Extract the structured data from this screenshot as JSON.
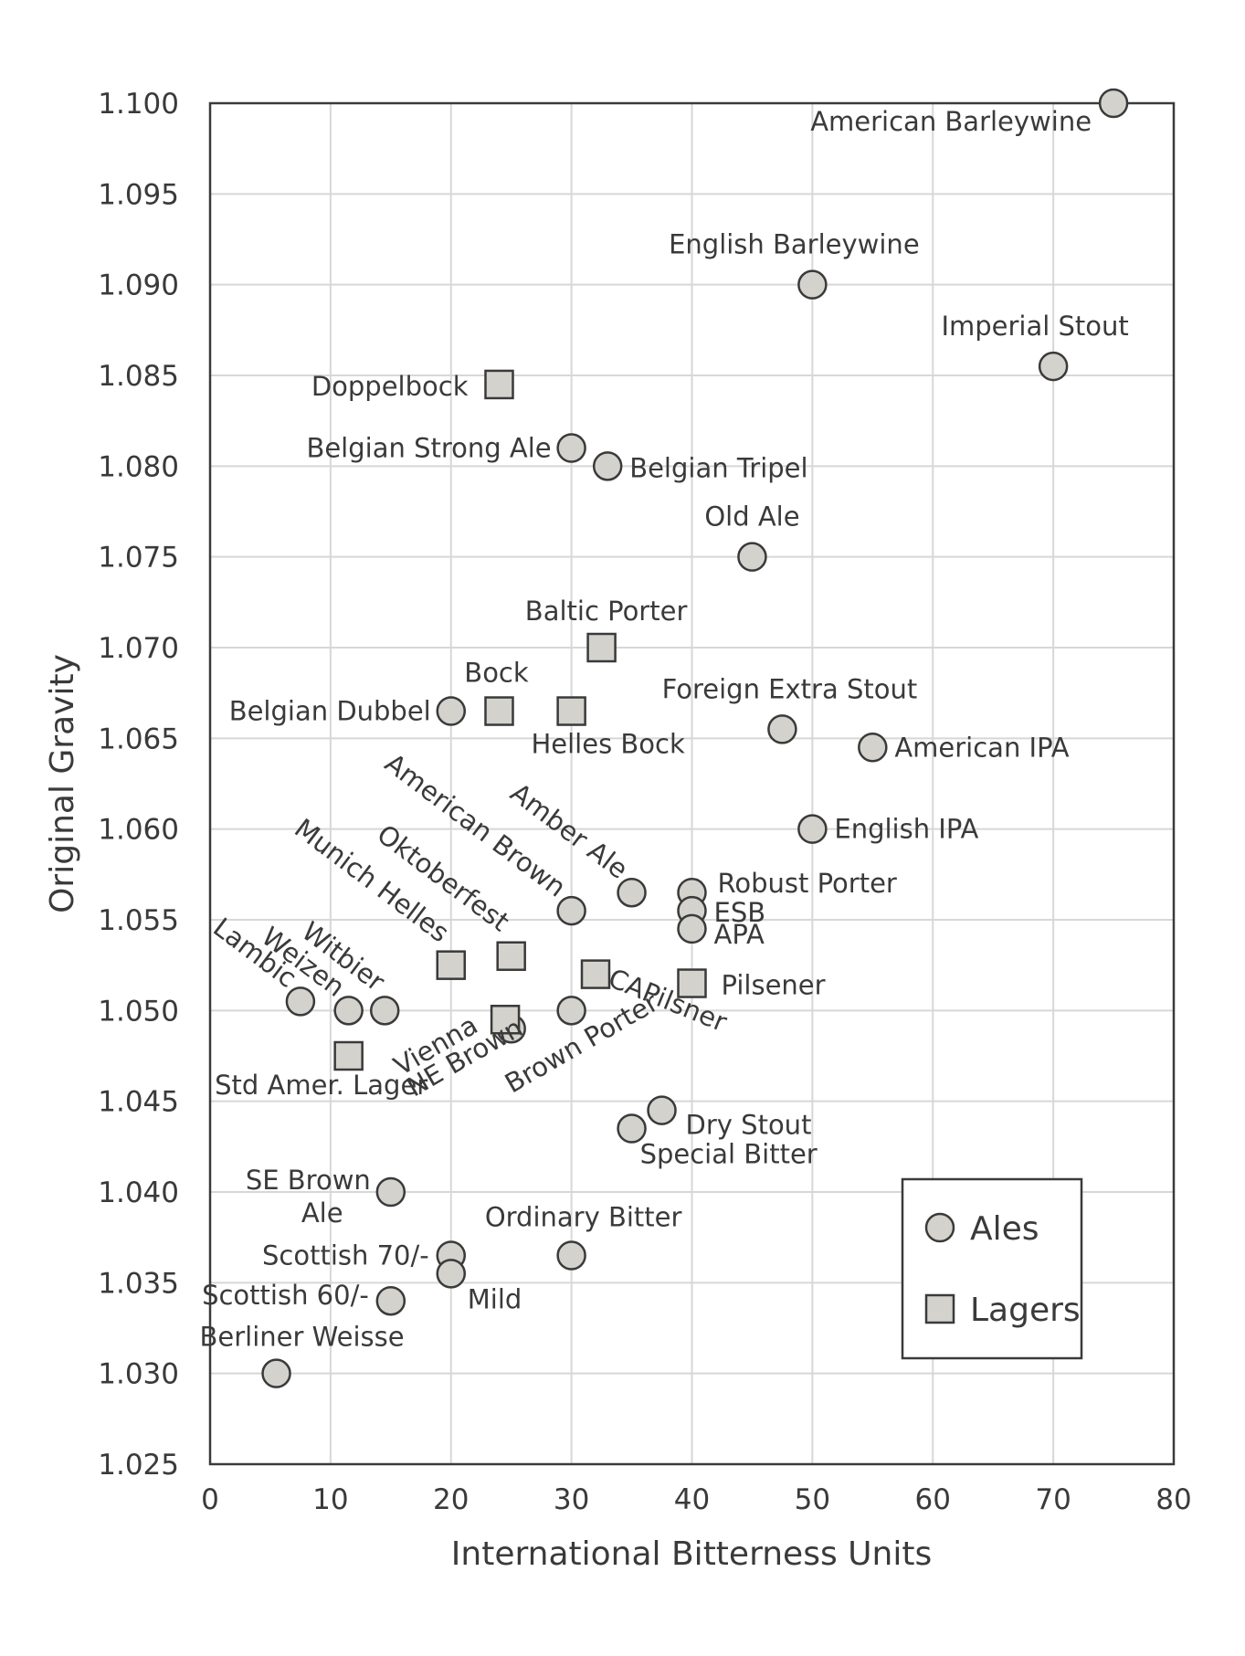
{
  "chart_data": {
    "type": "scatter",
    "title": "",
    "xlabel": "International Bitterness Units",
    "ylabel": "Original Gravity",
    "xlim": [
      0,
      80
    ],
    "ylim": [
      1.025,
      1.1
    ],
    "grid": true,
    "xticks": [
      0,
      10,
      20,
      30,
      40,
      50,
      60,
      70,
      80
    ],
    "yticks": [
      "1.025",
      "1.030",
      "1.035",
      "1.040",
      "1.045",
      "1.050",
      "1.055",
      "1.060",
      "1.065",
      "1.070",
      "1.075",
      "1.080",
      "1.085",
      "1.090",
      "1.095",
      "1.100"
    ],
    "legend": {
      "position": "bottom-right",
      "items": [
        {
          "name": "Ales",
          "marker": "circle"
        },
        {
          "name": "Lagers",
          "marker": "square"
        }
      ]
    },
    "series": [
      {
        "name": "Ales",
        "marker": "circle",
        "points": [
          {
            "label": "American Barleywine",
            "x": 75,
            "y": 1.1
          },
          {
            "label": "English Barleywine",
            "x": 50,
            "y": 1.09
          },
          {
            "label": "Imperial Stout",
            "x": 70,
            "y": 1.0855
          },
          {
            "label": "Belgian Strong Ale",
            "x": 30,
            "y": 1.081
          },
          {
            "label": "Belgian Tripel",
            "x": 33,
            "y": 1.08
          },
          {
            "label": "Old Ale",
            "x": 45,
            "y": 1.075
          },
          {
            "label": "Belgian Dubbel",
            "x": 20,
            "y": 1.0665
          },
          {
            "label": "Foreign Extra Stout",
            "x": 47.5,
            "y": 1.0655
          },
          {
            "label": "American IPA",
            "x": 55,
            "y": 1.0645
          },
          {
            "label": "English IPA",
            "x": 50,
            "y": 1.06
          },
          {
            "label": "Amber Ale",
            "x": 35,
            "y": 1.0565
          },
          {
            "label": "American Brown",
            "x": 30,
            "y": 1.0555
          },
          {
            "label": "Robust Porter",
            "x": 40,
            "y": 1.0565
          },
          {
            "label": "ESB",
            "x": 40,
            "y": 1.0555
          },
          {
            "label": "APA",
            "x": 40,
            "y": 1.0545
          },
          {
            "label": "Lambic",
            "x": 7.5,
            "y": 1.0505
          },
          {
            "label": "Weizen",
            "x": 11.5,
            "y": 1.05
          },
          {
            "label": "Witbier",
            "x": 14.5,
            "y": 1.05
          },
          {
            "label": "Brown Porter",
            "x": 30,
            "y": 1.05
          },
          {
            "label": "NE Brown",
            "x": 25,
            "y": 1.049
          },
          {
            "label": "Dry Stout",
            "x": 37.5,
            "y": 1.0445
          },
          {
            "label": "Special Bitter",
            "x": 35,
            "y": 1.0435
          },
          {
            "label": "SE Brown Ale",
            "x": 15,
            "y": 1.04
          },
          {
            "label": "Scottish 70/-",
            "x": 20,
            "y": 1.0365
          },
          {
            "label": "Ordinary Bitter",
            "x": 30,
            "y": 1.0365
          },
          {
            "label": "Mild",
            "x": 20,
            "y": 1.0355
          },
          {
            "label": "Scottish 60/-",
            "x": 15,
            "y": 1.034
          },
          {
            "label": "Berliner Weisse",
            "x": 5.5,
            "y": 1.03
          }
        ]
      },
      {
        "name": "Lagers",
        "marker": "square",
        "points": [
          {
            "label": "Doppelbock",
            "x": 24,
            "y": 1.0845
          },
          {
            "label": "Baltic Porter",
            "x": 32.5,
            "y": 1.07
          },
          {
            "label": "Bock",
            "x": 24,
            "y": 1.0665
          },
          {
            "label": "Helles Bock",
            "x": 30,
            "y": 1.0665
          },
          {
            "label": "Munich Helles",
            "x": 20,
            "y": 1.0525
          },
          {
            "label": "Oktoberfest",
            "x": 25,
            "y": 1.053
          },
          {
            "label": "CAPilsner",
            "x": 32,
            "y": 1.052
          },
          {
            "label": "Pilsener",
            "x": 40,
            "y": 1.0515
          },
          {
            "label": "Vienna",
            "x": 24.5,
            "y": 1.0495
          },
          {
            "label": "Std Amer. Lager",
            "x": 11.5,
            "y": 1.0475
          }
        ]
      }
    ]
  }
}
